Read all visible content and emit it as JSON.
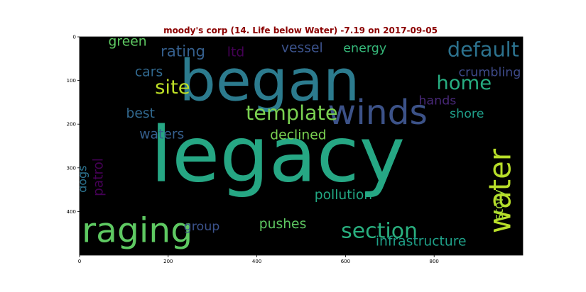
{
  "chart_data": {
    "type": "wordcloud",
    "title": "moody's corp (14. Life below Water) -7.19 on 2017-09-05",
    "xlim": [
      0,
      1000
    ],
    "ylim": [
      500,
      0
    ],
    "x_ticks": [
      0,
      200,
      400,
      600,
      800
    ],
    "y_ticks": [
      0,
      100,
      200,
      300,
      400
    ],
    "background": "#000000",
    "title_color": "#8b0000",
    "words": [
      {
        "text": "legacy",
        "x": 160,
        "y": 330,
        "size": 175,
        "rot": 0,
        "color": "#26a784"
      },
      {
        "text": "began",
        "x": 225,
        "y": 145,
        "size": 130,
        "rot": 0,
        "color": "#2c7b8e"
      },
      {
        "text": "winds",
        "x": 560,
        "y": 200,
        "size": 78,
        "rot": 0,
        "color": "#3c5288"
      },
      {
        "text": "raging",
        "x": 5,
        "y": 470,
        "size": 78,
        "rot": 0,
        "color": "#5ec962"
      },
      {
        "text": "water",
        "x": 972,
        "y": 450,
        "size": 68,
        "rot": -90,
        "color": "#b8de29"
      },
      {
        "text": "section",
        "x": 590,
        "y": 460,
        "size": 48,
        "rot": 0,
        "color": "#29af7f"
      },
      {
        "text": "template",
        "x": 375,
        "y": 190,
        "size": 46,
        "rot": 0,
        "color": "#7ad151"
      },
      {
        "text": "default",
        "x": 830,
        "y": 45,
        "size": 46,
        "rot": 0,
        "color": "#2c728e"
      },
      {
        "text": "home",
        "x": 805,
        "y": 120,
        "size": 44,
        "rot": 0,
        "color": "#27ad81"
      },
      {
        "text": "site",
        "x": 170,
        "y": 130,
        "size": 44,
        "rot": 0,
        "color": "#bddf26"
      },
      {
        "text": "rating",
        "x": 183,
        "y": 45,
        "size": 34,
        "rot": 0,
        "color": "#355f8d"
      },
      {
        "text": "vessel",
        "x": 455,
        "y": 35,
        "size": 30,
        "rot": 0,
        "color": "#3b528b"
      },
      {
        "text": "energy",
        "x": 595,
        "y": 35,
        "size": 28,
        "rot": 0,
        "color": "#35b779"
      },
      {
        "text": "green",
        "x": 65,
        "y": 20,
        "size": 30,
        "rot": 0,
        "color": "#5ec962"
      },
      {
        "text": "ltd",
        "x": 333,
        "y": 45,
        "size": 30,
        "rot": 0,
        "color": "#440154"
      },
      {
        "text": "cars",
        "x": 125,
        "y": 90,
        "size": 30,
        "rot": 0,
        "color": "#31688e"
      },
      {
        "text": "crumbling",
        "x": 855,
        "y": 90,
        "size": 28,
        "rot": 0,
        "color": "#3e4a89"
      },
      {
        "text": "hands",
        "x": 765,
        "y": 155,
        "size": 28,
        "rot": 0,
        "color": "#482878"
      },
      {
        "text": "shore",
        "x": 835,
        "y": 185,
        "size": 28,
        "rot": 0,
        "color": "#1f9e89"
      },
      {
        "text": "best",
        "x": 105,
        "y": 185,
        "size": 30,
        "rot": 0,
        "color": "#31688e"
      },
      {
        "text": "waters",
        "x": 135,
        "y": 233,
        "size": 30,
        "rot": 0,
        "color": "#355f8d"
      },
      {
        "text": "declined",
        "x": 430,
        "y": 235,
        "size": 30,
        "rot": 0,
        "color": "#7ad151"
      },
      {
        "text": "dogs",
        "x": 15,
        "y": 357,
        "size": 26,
        "rot": -90,
        "color": "#2c728e"
      },
      {
        "text": "patrol",
        "x": 52,
        "y": 365,
        "size": 30,
        "rot": -90,
        "color": "#440154"
      },
      {
        "text": "story",
        "x": 955,
        "y": 420,
        "size": 28,
        "rot": -90,
        "color": "#a5db36"
      },
      {
        "text": "pollution",
        "x": 530,
        "y": 372,
        "size": 30,
        "rot": 0,
        "color": "#22a884"
      },
      {
        "text": "pushes",
        "x": 405,
        "y": 438,
        "size": 30,
        "rot": 0,
        "color": "#5ec962"
      },
      {
        "text": "group",
        "x": 235,
        "y": 443,
        "size": 28,
        "rot": 0,
        "color": "#3b528b"
      },
      {
        "text": "infrastructure",
        "x": 668,
        "y": 478,
        "size": 30,
        "rot": 0,
        "color": "#1fa088"
      }
    ]
  }
}
